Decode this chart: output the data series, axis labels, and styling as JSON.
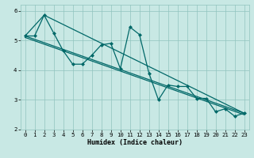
{
  "xlabel": "Humidex (Indice chaleur)",
  "xlim": [
    -0.5,
    23.5
  ],
  "ylim": [
    2,
    6.2
  ],
  "xticks": [
    0,
    1,
    2,
    3,
    4,
    5,
    6,
    7,
    8,
    9,
    10,
    11,
    12,
    13,
    14,
    15,
    16,
    17,
    18,
    19,
    20,
    21,
    22,
    23
  ],
  "yticks": [
    2,
    3,
    4,
    5,
    6
  ],
  "bg_color": "#c8e8e4",
  "grid_color": "#90c4be",
  "line_color": "#006868",
  "line1_x": [
    0,
    1,
    2,
    3,
    4,
    5,
    6,
    7,
    8,
    9,
    10,
    11,
    12,
    13,
    14,
    15,
    16,
    17,
    18,
    19,
    20,
    21,
    22,
    23
  ],
  "line1_y": [
    5.15,
    5.15,
    5.85,
    5.25,
    4.65,
    4.2,
    4.2,
    4.5,
    4.85,
    4.9,
    4.05,
    5.45,
    5.2,
    3.9,
    3.0,
    3.5,
    3.45,
    3.45,
    3.05,
    3.05,
    2.6,
    2.7,
    2.45,
    2.55
  ],
  "line2_x": [
    0,
    2,
    23
  ],
  "line2_y": [
    5.15,
    5.85,
    2.55
  ],
  "line3_x": [
    0,
    23
  ],
  "line3_y": [
    5.15,
    2.55
  ],
  "line4_x": [
    0,
    23
  ],
  "line4_y": [
    5.1,
    2.5
  ],
  "marker": "D",
  "markersize": 2.0,
  "linewidth": 0.9,
  "label_fontsize": 6.0,
  "tick_fontsize": 5.2
}
